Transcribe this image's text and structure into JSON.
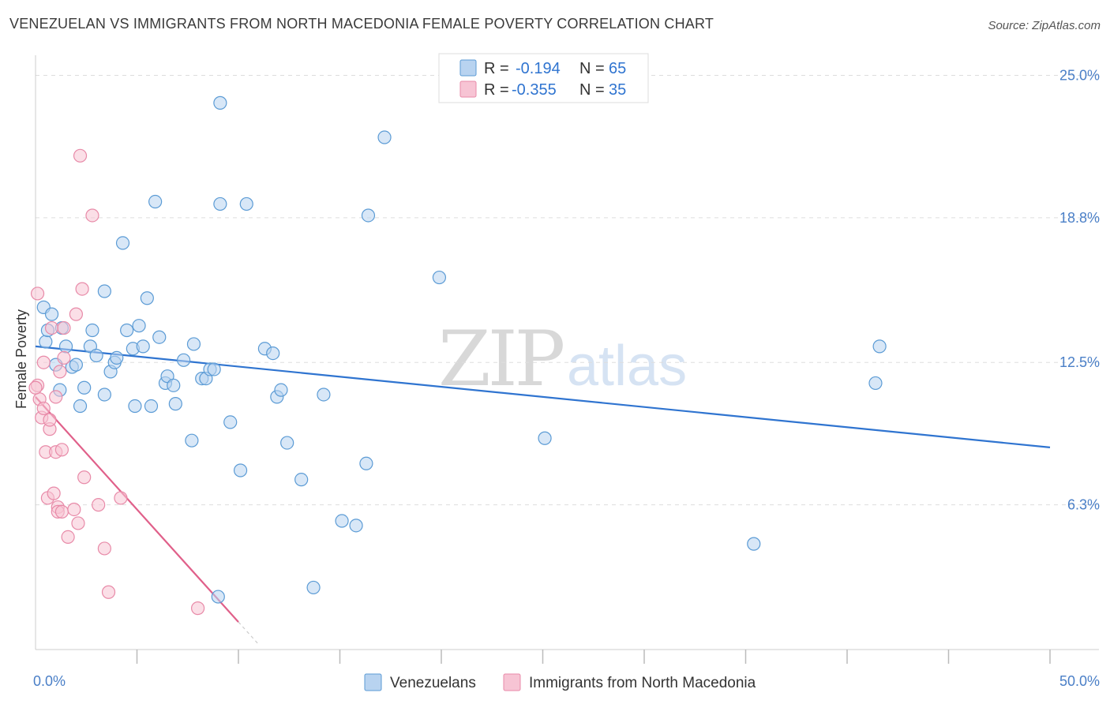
{
  "title": "VENEZUELAN VS IMMIGRANTS FROM NORTH MACEDONIA FEMALE POVERTY CORRELATION CHART",
  "source": "Source: ZipAtlas.com",
  "watermark": {
    "zip": "ZIP",
    "atlas": "atlas"
  },
  "colors": {
    "blue": "#5b9bd5",
    "blue_fill": "#b8d3f0",
    "blue_line": "#2f74d0",
    "pink": "#e88aa8",
    "pink_fill": "#f7c4d4",
    "pink_line": "#e0608a",
    "axis_text": "#4a7fc7",
    "grid": "#dddddd"
  },
  "legend_top": [
    {
      "r_label": "R = ",
      "r_value": "-0.194",
      "n_label": "N = ",
      "n_value": "65"
    },
    {
      "r_label": "R = ",
      "r_value": "-0.355",
      "n_label": "N = ",
      "n_value": "35"
    }
  ],
  "chart_data": {
    "type": "scatter",
    "title": "VENEZUELAN VS IMMIGRANTS FROM NORTH MACEDONIA FEMALE POVERTY CORRELATION CHART",
    "xlabel": "",
    "ylabel": "Female Poverty",
    "xlim": [
      0,
      50
    ],
    "ylim": [
      0,
      25.6
    ],
    "x_tick_labels": [
      "0.0%",
      "50.0%"
    ],
    "y_ticks": [
      6.3,
      12.5,
      18.8,
      25.0
    ],
    "y_tick_labels": [
      "6.3%",
      "12.5%",
      "18.8%",
      "25.0%"
    ],
    "grid": true,
    "legend_position": "bottom-center",
    "series": [
      {
        "name": "Venezuelans",
        "points": [
          [
            0.4,
            14.9
          ],
          [
            0.5,
            13.4
          ],
          [
            0.6,
            13.9
          ],
          [
            0.8,
            14.6
          ],
          [
            1.0,
            12.4
          ],
          [
            1.2,
            11.3
          ],
          [
            1.3,
            14.0
          ],
          [
            1.5,
            13.2
          ],
          [
            1.8,
            12.3
          ],
          [
            2.0,
            12.4
          ],
          [
            2.2,
            10.6
          ],
          [
            2.4,
            11.4
          ],
          [
            2.7,
            13.2
          ],
          [
            2.8,
            13.9
          ],
          [
            3.0,
            12.8
          ],
          [
            3.4,
            15.6
          ],
          [
            3.4,
            11.1
          ],
          [
            3.7,
            12.1
          ],
          [
            3.9,
            12.5
          ],
          [
            4.0,
            12.7
          ],
          [
            4.3,
            17.7
          ],
          [
            4.5,
            13.9
          ],
          [
            4.8,
            13.1
          ],
          [
            4.9,
            10.6
          ],
          [
            5.1,
            14.1
          ],
          [
            5.3,
            13.2
          ],
          [
            5.5,
            15.3
          ],
          [
            5.7,
            10.6
          ],
          [
            5.9,
            19.5
          ],
          [
            6.1,
            13.6
          ],
          [
            6.4,
            11.6
          ],
          [
            6.5,
            11.9
          ],
          [
            6.8,
            11.5
          ],
          [
            6.9,
            10.7
          ],
          [
            7.3,
            12.6
          ],
          [
            7.7,
            9.1
          ],
          [
            7.8,
            13.3
          ],
          [
            8.2,
            11.8
          ],
          [
            8.4,
            11.8
          ],
          [
            8.6,
            12.2
          ],
          [
            8.8,
            12.2
          ],
          [
            9.1,
            19.4
          ],
          [
            9.1,
            23.8
          ],
          [
            9.6,
            9.9
          ],
          [
            10.1,
            7.8
          ],
          [
            10.4,
            19.4
          ],
          [
            11.3,
            13.1
          ],
          [
            11.7,
            12.9
          ],
          [
            11.9,
            11.0
          ],
          [
            12.1,
            11.3
          ],
          [
            12.4,
            9.0
          ],
          [
            13.1,
            7.4
          ],
          [
            13.7,
            2.7
          ],
          [
            14.2,
            11.1
          ],
          [
            15.1,
            5.6
          ],
          [
            15.8,
            5.4
          ],
          [
            16.3,
            8.1
          ],
          [
            16.4,
            18.9
          ],
          [
            17.2,
            22.3
          ],
          [
            19.9,
            16.2
          ],
          [
            25.1,
            9.2
          ],
          [
            35.4,
            4.6
          ],
          [
            41.4,
            11.6
          ],
          [
            41.6,
            13.2
          ],
          [
            9.0,
            2.3
          ]
        ]
      },
      {
        "name": "Immigrants from North Macedonia",
        "points": [
          [
            0.1,
            15.5
          ],
          [
            0.1,
            11.5
          ],
          [
            0.2,
            10.9
          ],
          [
            0.3,
            10.1
          ],
          [
            0.4,
            12.5
          ],
          [
            0.4,
            10.5
          ],
          [
            0.5,
            8.6
          ],
          [
            0.6,
            6.6
          ],
          [
            0.7,
            9.6
          ],
          [
            0.7,
            10.0
          ],
          [
            0.8,
            14.0
          ],
          [
            0.9,
            6.8
          ],
          [
            1.0,
            11.0
          ],
          [
            1.0,
            8.6
          ],
          [
            1.1,
            6.2
          ],
          [
            1.1,
            6.0
          ],
          [
            1.2,
            12.1
          ],
          [
            1.3,
            6.0
          ],
          [
            1.3,
            8.7
          ],
          [
            1.4,
            14.0
          ],
          [
            1.4,
            12.7
          ],
          [
            1.6,
            4.9
          ],
          [
            1.9,
            6.1
          ],
          [
            2.0,
            14.6
          ],
          [
            2.1,
            5.5
          ],
          [
            2.2,
            21.5
          ],
          [
            2.3,
            15.7
          ],
          [
            2.4,
            7.5
          ],
          [
            2.8,
            18.9
          ],
          [
            3.1,
            6.3
          ],
          [
            3.4,
            4.4
          ],
          [
            3.6,
            2.5
          ],
          [
            4.2,
            6.6
          ],
          [
            8.0,
            1.8
          ],
          [
            0.0,
            11.4
          ]
        ]
      }
    ],
    "trend_lines": [
      {
        "series": "Venezuelans",
        "x": [
          0,
          50
        ],
        "y": [
          13.2,
          8.8
        ]
      },
      {
        "series": "Immigrants from North Macedonia",
        "x": [
          0,
          10
        ],
        "y": [
          11.0,
          1.2
        ],
        "dashed_extension_to_x": 11.0
      }
    ]
  },
  "legend_bottom": [
    {
      "label": "Venezuelans"
    },
    {
      "label": "Immigrants from North Macedonia"
    }
  ]
}
